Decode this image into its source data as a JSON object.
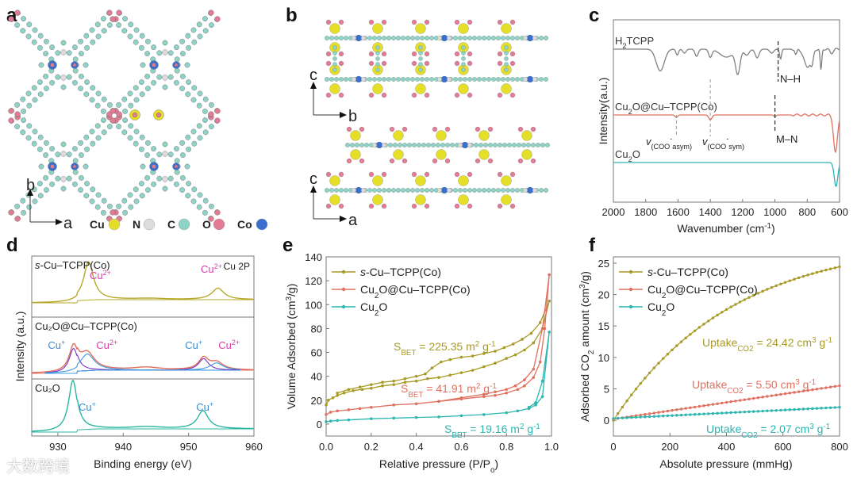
{
  "panels": {
    "a": "a",
    "b": "b",
    "c": "c",
    "d": "d",
    "e": "e",
    "f": "f"
  },
  "structure_a": {
    "axis_up": "b",
    "axis_right": "a",
    "legend": [
      {
        "label": "Cu",
        "color": "#e6df2a"
      },
      {
        "label": "N",
        "color": "#dcdcdc"
      },
      {
        "label": "C",
        "color": "#8fd3c7"
      },
      {
        "label": "O",
        "color": "#e07c93"
      },
      {
        "label": "Co",
        "color": "#3a6fd0"
      }
    ]
  },
  "structure_b": {
    "top_axes": {
      "up": "c",
      "right": "b"
    },
    "bottom_axes": {
      "up": "c",
      "right": "a"
    }
  },
  "watermark": "大数跨境",
  "chart_data": [
    {
      "id": "c",
      "type": "line",
      "title": "",
      "xlabel": "Wavenumber (cm-1)",
      "xlabel_main": "Wavenumber (cm",
      "xlabel_sup": "-1",
      "xlabel_end": ")",
      "ylabel": "Intensity(a.u.)",
      "xlim": [
        2000,
        600
      ],
      "xticks": [
        2000,
        1800,
        1600,
        1400,
        1200,
        1000,
        800,
        600
      ],
      "series": [
        {
          "name": "H2TCPP",
          "label_main": "H",
          "label_sub": "2",
          "label_end": "TCPP",
          "color": "#808080",
          "offset": 0,
          "dips": [
            [
              1710,
              0.55,
              25
            ],
            [
              1605,
              0.15,
              8
            ],
            [
              1560,
              0.1,
              10
            ],
            [
              1485,
              0.18,
              10
            ],
            [
              1400,
              0.2,
              10
            ],
            [
              1300,
              0.2,
              40
            ],
            [
              1230,
              0.6,
              14
            ],
            [
              1175,
              0.15,
              15
            ],
            [
              1110,
              0.22,
              12
            ],
            [
              1020,
              0.1,
              12
            ],
            [
              965,
              0.25,
              6
            ],
            [
              870,
              0.15,
              6
            ],
            [
              800,
              0.45,
              20
            ],
            [
              770,
              0.3,
              8
            ],
            [
              715,
              0.55,
              5
            ],
            [
              650,
              0.1,
              10
            ]
          ]
        },
        {
          "name": "Cu2O@Cu–TCPP(Co)",
          "label_main": "Cu",
          "label_sub": "2",
          "label_end": "O@Cu–TCPP(Co)",
          "color": "#e0705f",
          "offset": 1,
          "dips": [
            [
              1610,
              0.05,
              8
            ],
            [
              1400,
              0.1,
              10
            ],
            [
              1000,
              0.03,
              8
            ],
            [
              625,
              0.8,
              12
            ]
          ]
        },
        {
          "name": "Cu2O",
          "label_main": "Cu",
          "label_sub": "2",
          "label_end": "O",
          "color": "#2bb5b0",
          "offset": 2,
          "dips": [
            [
              622,
              0.55,
              11
            ]
          ]
        }
      ],
      "annotations": [
        {
          "x": 1610,
          "text": "v(COO- asym)",
          "main": "v",
          "sub": "(COO",
          "sup": "-",
          "sub2": "asym)"
        },
        {
          "x": 1400,
          "text": "v(COO- sym)",
          "main": "v",
          "sub": "(COO",
          "sup": "-",
          "sub2": "sym)"
        },
        {
          "x": 1000,
          "text": "M–N"
        },
        {
          "x": 980,
          "text": "N–H"
        }
      ]
    },
    {
      "id": "d",
      "type": "line",
      "xlabel": "Binding energy (eV)",
      "ylabel": "Intensity (a.u.)",
      "xlim": [
        926,
        960
      ],
      "xticks": [
        930,
        940,
        950,
        960
      ],
      "corner_label": "Cu 2P",
      "subpanels": [
        {
          "name": "s-Cu–TCPP(Co)",
          "label_pre": "s",
          "label_main": "-Cu–TCPP(Co)",
          "color": "#b5a82a",
          "peaks": [
            [
              934.7,
              1,
              0.9
            ],
            [
              954.5,
              0.3,
              1.1
            ],
            [
              944,
              0.03,
              3
            ]
          ],
          "annotations": [
            {
              "text": "Cu",
              "sup": "2+",
              "x": 936.5,
              "color": "#d63fa8"
            },
            {
              "text": "Cu",
              "sup": "2+",
              "x": 953.5,
              "color": "#d63fa8"
            }
          ]
        },
        {
          "name": "Cu2O@Cu–TCPP(Co)",
          "label_pre": "",
          "label_main": "Cu₂O@Cu–TCPP(Co)",
          "color": "#e0705f",
          "peaks": [
            [
              932.4,
              0.75,
              0.8
            ],
            [
              934.5,
              0.5,
              1.3
            ],
            [
              952.3,
              0.35,
              0.9
            ],
            [
              954.3,
              0.22,
              1.2
            ],
            [
              943.5,
              0.08,
              2.5
            ]
          ],
          "components": [
            {
              "color": "#7a2fc9",
              "peak": [
                932.4,
                0.75,
                0.8
              ]
            },
            {
              "color": "#3c9be0",
              "peak": [
                934.5,
                0.5,
                1.3
              ]
            },
            {
              "color": "#7a2fc9",
              "peak": [
                952.3,
                0.35,
                0.9
              ]
            },
            {
              "color": "#3c9be0",
              "peak": [
                954.3,
                0.22,
                1.2
              ]
            }
          ],
          "annotations": [
            {
              "text": "Cu",
              "sup": "+",
              "x": 929.8,
              "color": "#3c8ad0"
            },
            {
              "text": "Cu",
              "sup": "2+",
              "x": 937.5,
              "color": "#d63fa8"
            },
            {
              "text": "Cu",
              "sup": "+",
              "x": 950.8,
              "color": "#3c8ad0"
            },
            {
              "text": "Cu",
              "sup": "2+",
              "x": 956.2,
              "color": "#d63fa8"
            }
          ]
        },
        {
          "name": "Cu2O",
          "label_pre": "",
          "label_main": "Cu₂O",
          "color": "#2bb5a0",
          "peaks": [
            [
              932.3,
              1,
              0.8
            ],
            [
              952.2,
              0.35,
              1.0
            ],
            [
              943.5,
              0.04,
              3
            ]
          ],
          "annotations": [
            {
              "text": "Cu",
              "sup": "+",
              "x": 934.5,
              "color": "#3c8ad0"
            },
            {
              "text": "Cu",
              "sup": "+",
              "x": 952.5,
              "color": "#3c8ad0"
            }
          ]
        }
      ]
    },
    {
      "id": "e",
      "type": "line",
      "xlabel": "Relative pressure (P/Po)",
      "xlabel_main": "Relative pressure (P/P",
      "xlabel_sub": "o",
      "xlabel_end": ")",
      "ylabel": "Volume Adsorbed (cm3/g)",
      "ylabel_main": "Volume Adsorbed (cm",
      "ylabel_sup": "3",
      "ylabel_end": "/g)",
      "xlim": [
        0,
        1.0
      ],
      "ylim": [
        -10,
        140
      ],
      "xticks": [
        "0.0",
        "0.2",
        "0.4",
        "0.6",
        "0.8",
        "1.0"
      ],
      "yticks": [
        0,
        20,
        40,
        60,
        80,
        100,
        120,
        140
      ],
      "legend": "top-left",
      "series": [
        {
          "name": "s-Cu–TCPP(Co)",
          "color": "#a89a25",
          "sbet": "225.35",
          "sbet_text": "SBET = 225.35 m2 g-1",
          "x": [
            0,
            0.01,
            0.03,
            0.05,
            0.08,
            0.12,
            0.16,
            0.2,
            0.25,
            0.3,
            0.35,
            0.4,
            0.45,
            0.5,
            0.55,
            0.6,
            0.65,
            0.7,
            0.75,
            0.8,
            0.84,
            0.88,
            0.92,
            0.96,
            0.99,
            0.95,
            0.91,
            0.87,
            0.83,
            0.79,
            0.75,
            0.7,
            0.65,
            0.6,
            0.55,
            0.51,
            0.47,
            0.44,
            0.4,
            0.35,
            0.3,
            0.25,
            0.2,
            0.15,
            0.1,
            0.05
          ],
          "y": [
            16,
            20,
            22,
            24,
            26,
            28,
            29,
            30,
            32,
            33,
            35,
            36,
            38,
            39,
            41,
            43,
            45,
            48,
            51,
            55,
            58,
            62,
            68,
            80,
            103,
            85,
            76,
            71,
            67,
            64,
            61,
            59,
            57,
            56,
            54,
            52,
            47,
            42,
            40,
            38,
            36,
            35,
            33,
            31,
            29,
            26
          ]
        },
        {
          "name": "Cu2O@Cu–TCPP(Co)",
          "color": "#e0705f",
          "sbet": "41.91",
          "sbet_text": "SBET = 41.91 m2 g-1",
          "x": [
            0,
            0.02,
            0.05,
            0.1,
            0.15,
            0.2,
            0.3,
            0.4,
            0.5,
            0.6,
            0.7,
            0.75,
            0.8,
            0.85,
            0.88,
            0.92,
            0.95,
            0.97,
            0.99,
            0.96,
            0.92,
            0.88,
            0.84,
            0.8,
            0.75,
            0.7,
            0.6,
            0.5
          ],
          "y": [
            8,
            10,
            11,
            12,
            13,
            14,
            16,
            17,
            19,
            21,
            23,
            24,
            26,
            29,
            32,
            39,
            52,
            80,
            125,
            80,
            46,
            37,
            32,
            29,
            27,
            25,
            22,
            19
          ]
        },
        {
          "name": "Cu2O",
          "color": "#2bb5b0",
          "sbet": "19.16",
          "sbet_text": "SBET = 19.16 m2 g-1",
          "x": [
            0,
            0.02,
            0.05,
            0.1,
            0.2,
            0.3,
            0.4,
            0.5,
            0.6,
            0.7,
            0.8,
            0.85,
            0.9,
            0.93,
            0.96,
            0.99,
            0.96,
            0.93,
            0.9
          ],
          "y": [
            2,
            2.5,
            3,
            3.5,
            4.5,
            5,
            5.5,
            6,
            7,
            8,
            9.5,
            11,
            13,
            16,
            23,
            77,
            36,
            18,
            14
          ]
        }
      ]
    },
    {
      "id": "f",
      "type": "line",
      "xlabel": "Absolute pressure (mmHg)",
      "ylabel": "Adsorbed CO2 amount (cm3/g)",
      "ylabel_a": "Adsorbed CO",
      "ylabel_sub": "2",
      "ylabel_b": " amount (cm",
      "ylabel_sup": "3",
      "ylabel_end": "/g)",
      "xlim": [
        0,
        800
      ],
      "ylim": [
        -2.5,
        26
      ],
      "xticks": [
        0,
        200,
        400,
        600,
        800
      ],
      "yticks": [
        0,
        5,
        10,
        15,
        20,
        25
      ],
      "legend": "top-left",
      "series": [
        {
          "name": "s-Cu–TCPP(Co)",
          "color": "#a89a25",
          "uptake": "24.42",
          "uptake_text": "UptakeCO2 = 24.42 cm3 g-1",
          "fn": [
            24.42,
            "conc"
          ]
        },
        {
          "name": "Cu2O@Cu–TCPP(Co)",
          "color": "#e0705f",
          "uptake": "5.50",
          "uptake_text": "UptakeCO2 = 5.50 cm3 g-1",
          "fn": [
            5.5,
            "lin"
          ]
        },
        {
          "name": "Cu2O",
          "color": "#2bb5b0",
          "uptake": "2.07",
          "uptake_text": "UptakeCO2 = 2.07 cm3 g-1",
          "fn": [
            2.07,
            "lin"
          ]
        }
      ]
    }
  ],
  "legend_labels": {
    "s": "s",
    "s_rest": "-Cu–TCPP(Co)",
    "cu2o_at_a": "Cu",
    "cu2o_at_sub": "2",
    "cu2o_at_b": "O@Cu–TCPP(Co)",
    "cu2o_a": "Cu",
    "cu2o_sub": "2",
    "cu2o_b": "O"
  },
  "misc": {
    "sbet": "S",
    "sbet_sub": "BET",
    "eq": " = ",
    "m2": " m",
    "sup2": "2",
    "g": " g",
    "supm1": "-1",
    "uptake": "Uptake",
    "co2": "CO",
    "co2sub": "2",
    "cm3": " cm",
    "sup3": "3"
  }
}
